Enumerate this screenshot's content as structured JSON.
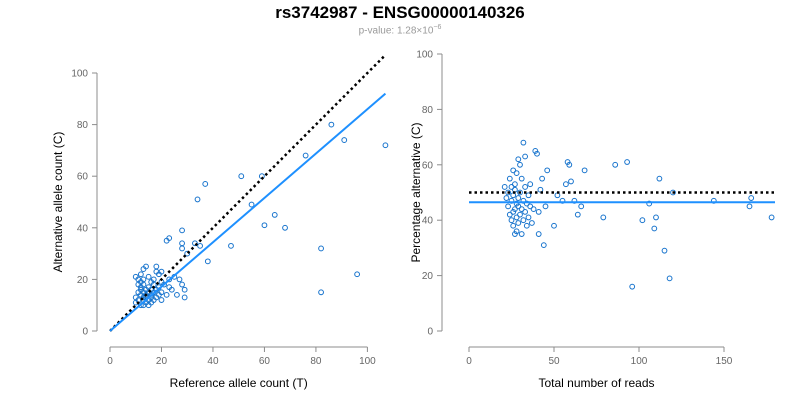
{
  "title": "rs3742987 - ENSG00000140326",
  "subtitle": {
    "prefix": "p-value: 1.28×10",
    "exponent": "−6"
  },
  "colors": {
    "points": "#1874cd",
    "fit_line": "#1e90ff",
    "reference_line": "#000000",
    "axis": "#8c8c8c"
  },
  "chart_data": [
    {
      "type": "scatter",
      "xlabel": "Reference allele count (T)",
      "ylabel": "Alternative allele count (C)",
      "xlim": [
        0,
        108
      ],
      "ylim": [
        0,
        100
      ],
      "xticks": [
        0,
        20,
        40,
        60,
        80,
        100
      ],
      "yticks": [
        0,
        20,
        40,
        60,
        80,
        100
      ],
      "grid": false,
      "points": [
        [
          10,
          11
        ],
        [
          10,
          13
        ],
        [
          10,
          21
        ],
        [
          11,
          12
        ],
        [
          11,
          15
        ],
        [
          11,
          18
        ],
        [
          11,
          20
        ],
        [
          12,
          10
        ],
        [
          12,
          14
        ],
        [
          12,
          16
        ],
        [
          12,
          17
        ],
        [
          12,
          19
        ],
        [
          12,
          22
        ],
        [
          13,
          10
        ],
        [
          13,
          12
        ],
        [
          13,
          13
        ],
        [
          13,
          15
        ],
        [
          13,
          18
        ],
        [
          13,
          20
        ],
        [
          13,
          24
        ],
        [
          14,
          11
        ],
        [
          14,
          13
        ],
        [
          14,
          14
        ],
        [
          14,
          16
        ],
        [
          14,
          25
        ],
        [
          15,
          10
        ],
        [
          15,
          12
        ],
        [
          15,
          15
        ],
        [
          15,
          17
        ],
        [
          15,
          21
        ],
        [
          16,
          11
        ],
        [
          16,
          13
        ],
        [
          16,
          14
        ],
        [
          16,
          16
        ],
        [
          16,
          19
        ],
        [
          17,
          12
        ],
        [
          17,
          15
        ],
        [
          17,
          18
        ],
        [
          17,
          20
        ],
        [
          18,
          13
        ],
        [
          18,
          16
        ],
        [
          18,
          23
        ],
        [
          18,
          25
        ],
        [
          19,
          14
        ],
        [
          19,
          17
        ],
        [
          19,
          22
        ],
        [
          20,
          12
        ],
        [
          20,
          15
        ],
        [
          20,
          19
        ],
        [
          20,
          23
        ],
        [
          21,
          18
        ],
        [
          22,
          35
        ],
        [
          22,
          14
        ],
        [
          23,
          36
        ],
        [
          23,
          17
        ],
        [
          23,
          20
        ],
        [
          24,
          16
        ],
        [
          25,
          21
        ],
        [
          26,
          14
        ],
        [
          27,
          20
        ],
        [
          28,
          18
        ],
        [
          28,
          32
        ],
        [
          28,
          34
        ],
        [
          28,
          39
        ],
        [
          29,
          13
        ],
        [
          29,
          16
        ],
        [
          30,
          30
        ],
        [
          33,
          34
        ],
        [
          34,
          51
        ],
        [
          35,
          33
        ],
        [
          37,
          57
        ],
        [
          38,
          27
        ],
        [
          47,
          33
        ],
        [
          51,
          60
        ],
        [
          55,
          49
        ],
        [
          59,
          60
        ],
        [
          60,
          41
        ],
        [
          64,
          45
        ],
        [
          68,
          40
        ],
        [
          76,
          68
        ],
        [
          82,
          15
        ],
        [
          82,
          32
        ],
        [
          86,
          80
        ],
        [
          91,
          74
        ],
        [
          96,
          22
        ],
        [
          107,
          72
        ]
      ],
      "fit_line": [
        [
          0,
          0
        ],
        [
          107,
          92
        ]
      ],
      "reference_line": [
        [
          0,
          0
        ],
        [
          107,
          107
        ]
      ]
    },
    {
      "type": "scatter",
      "xlabel": "Total number of reads",
      "ylabel": "Percentage alternative (C)",
      "xlim": [
        0,
        180
      ],
      "ylim": [
        0,
        100
      ],
      "xticks": [
        0,
        50,
        100,
        150
      ],
      "yticks": [
        0,
        20,
        40,
        60,
        80,
        100
      ],
      "grid": false,
      "points": [
        [
          21,
          52
        ],
        [
          22,
          48
        ],
        [
          23,
          45
        ],
        [
          23,
          50
        ],
        [
          24,
          42
        ],
        [
          24,
          55
        ],
        [
          25,
          40
        ],
        [
          25,
          47
        ],
        [
          25,
          52
        ],
        [
          26,
          38
        ],
        [
          26,
          43
        ],
        [
          26,
          49
        ],
        [
          26,
          58
        ],
        [
          27,
          35
        ],
        [
          27,
          44
        ],
        [
          27,
          51
        ],
        [
          27,
          53
        ],
        [
          28,
          36
        ],
        [
          28,
          41
        ],
        [
          28,
          46
        ],
        [
          28,
          57
        ],
        [
          29,
          39
        ],
        [
          29,
          45
        ],
        [
          29,
          48
        ],
        [
          29,
          62
        ],
        [
          30,
          42
        ],
        [
          30,
          50
        ],
        [
          30,
          60
        ],
        [
          31,
          35
        ],
        [
          31,
          44
        ],
        [
          31,
          55
        ],
        [
          32,
          68
        ],
        [
          32,
          40
        ],
        [
          32,
          47
        ],
        [
          33,
          43
        ],
        [
          33,
          52
        ],
        [
          33,
          63
        ],
        [
          34,
          38
        ],
        [
          34,
          46
        ],
        [
          35,
          41
        ],
        [
          35,
          49
        ],
        [
          36,
          45
        ],
        [
          36,
          53
        ],
        [
          37,
          39
        ],
        [
          38,
          44
        ],
        [
          39,
          65
        ],
        [
          40,
          64
        ],
        [
          41,
          35
        ],
        [
          41,
          43
        ],
        [
          42,
          51
        ],
        [
          43,
          55
        ],
        [
          44,
          31
        ],
        [
          45,
          45
        ],
        [
          46,
          58
        ],
        [
          50,
          38
        ],
        [
          52,
          49
        ],
        [
          55,
          47
        ],
        [
          57,
          53
        ],
        [
          58,
          61
        ],
        [
          59,
          60
        ],
        [
          60,
          54
        ],
        [
          62,
          47
        ],
        [
          64,
          42
        ],
        [
          66,
          45
        ],
        [
          68,
          58
        ],
        [
          79,
          41
        ],
        [
          86,
          60
        ],
        [
          93,
          61
        ],
        [
          96,
          16
        ],
        [
          102,
          40
        ],
        [
          106,
          46
        ],
        [
          109,
          37
        ],
        [
          110,
          41
        ],
        [
          112,
          55
        ],
        [
          115,
          29
        ],
        [
          118,
          19
        ],
        [
          120,
          50
        ],
        [
          144,
          47
        ],
        [
          165,
          45
        ],
        [
          166,
          48
        ],
        [
          178,
          41
        ]
      ],
      "fit_line": [
        [
          0,
          46.5
        ],
        [
          180,
          46.5
        ]
      ],
      "reference_line": [
        [
          0,
          50
        ],
        [
          180,
          50
        ]
      ]
    }
  ]
}
